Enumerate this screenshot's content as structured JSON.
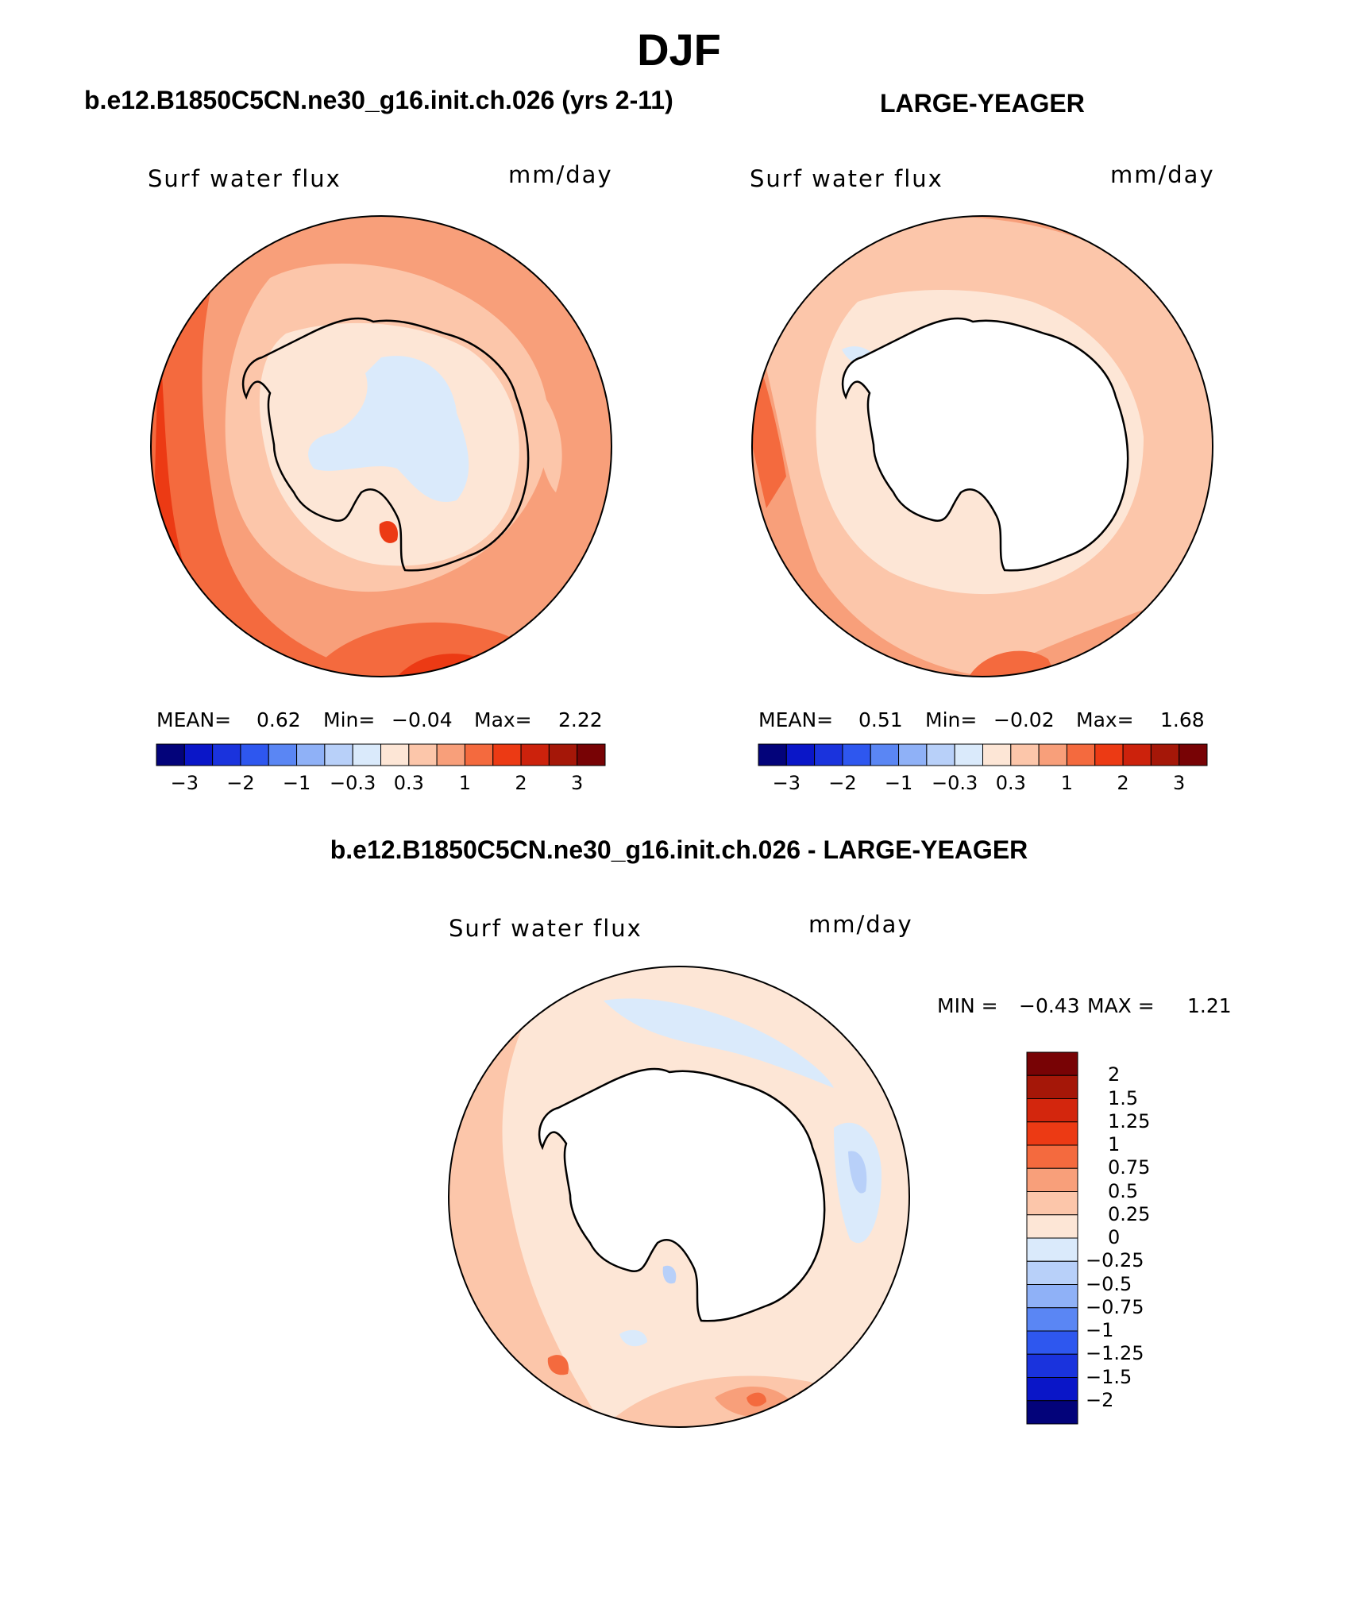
{
  "title": "DJF",
  "panel_titles": {
    "case": "b.e12.B1850C5CN.ne30_g16.init.ch.026 (yrs 2-11)",
    "obs": "LARGE-YEAGER",
    "diff": "b.e12.B1850C5CN.ne30_g16.init.ch.026 - LARGE-YEAGER"
  },
  "chart_data": [
    {
      "type": "heatmap",
      "projection": "polar stereographic, Southern Hemisphere",
      "variable": "Surf water flux",
      "units": "mm/day",
      "stats": {
        "mean_label": "MEAN=",
        "mean": "0.62",
        "min_label": "Min=",
        "min": "−0.04",
        "max_label": "Max=",
        "max": "2.22"
      },
      "colorbar_ticks": [
        "−3",
        "−2",
        "−1",
        "−0.3",
        "0.3",
        "1",
        "2",
        "3"
      ],
      "colorbar_colors": [
        "#03037a",
        "#0a16c8",
        "#1a33dd",
        "#2e57ef",
        "#5a86f4",
        "#8fb1f7",
        "#b8d0f9",
        "#daeafb",
        "#fde6d6",
        "#fcc6aa",
        "#f89f7a",
        "#f46a3e",
        "#ec3a14",
        "#cc220c",
        "#a51708",
        "#780305"
      ],
      "regions": [
        "Southern Ocean mostly 1 to 2 mm/day",
        "Outer edge 2 to 3 mm/day",
        "Antarctic interior −0.3 to 0.3 mm/day"
      ]
    },
    {
      "type": "heatmap",
      "projection": "polar stereographic, Southern Hemisphere",
      "variable": "Surf water flux",
      "units": "mm/day",
      "stats": {
        "mean_label": "MEAN=",
        "mean": "0.51",
        "min_label": "Min=",
        "min": "−0.02",
        "max_label": "Max=",
        "max": "1.68"
      },
      "colorbar_ticks": [
        "−3",
        "−2",
        "−1",
        "−0.3",
        "0.3",
        "1",
        "2",
        "3"
      ],
      "colorbar_colors": [
        "#03037a",
        "#0a16c8",
        "#1a33dd",
        "#2e57ef",
        "#5a86f4",
        "#8fb1f7",
        "#b8d0f9",
        "#daeafb",
        "#fde6d6",
        "#fcc6aa",
        "#f89f7a",
        "#f46a3e",
        "#ec3a14",
        "#cc220c",
        "#a51708",
        "#780305"
      ],
      "regions": [
        "Southern Ocean mostly 0.3 to 2 mm/day",
        "Antarctic continent missing (white)"
      ]
    },
    {
      "type": "heatmap",
      "projection": "polar stereographic, Southern Hemisphere",
      "variable": "Surf water flux",
      "units": "mm/day",
      "stats": {
        "min_label": "MIN =",
        "min": "−0.43",
        "max_label": "MAX =",
        "max": "1.21"
      },
      "colorbar_ticks": [
        "2",
        "1.5",
        "1.25",
        "1",
        "0.75",
        "0.5",
        "0.25",
        "0",
        "−0.25",
        "−0.5",
        "−0.75",
        "−1",
        "−1.25",
        "−1.5",
        "−2"
      ],
      "colorbar_colors": [
        "#780305",
        "#a51708",
        "#d3260d",
        "#ec3a14",
        "#f46a3e",
        "#f89f7a",
        "#fcc6aa",
        "#fde6d6",
        "#daeafb",
        "#b8d0f9",
        "#8fb1f7",
        "#5a86f4",
        "#2e57ef",
        "#1a33dd",
        "#0a16c8",
        "#03037a"
      ],
      "regions": [
        "Differences mostly 0 to 0.5 mm/day",
        "Small negative patches −0.25 to 0",
        "Antarctic continent missing (white)"
      ]
    }
  ]
}
